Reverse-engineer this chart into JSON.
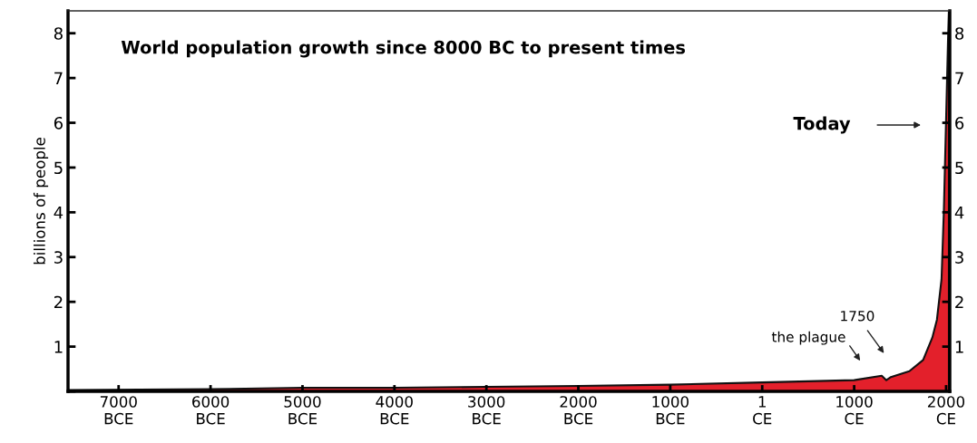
{
  "chart_data": {
    "type": "area",
    "title": "World population growth since 8000 BC to present times",
    "ylabel": "billions of people",
    "x": [
      -7550,
      -6000,
      -5000,
      -4000,
      -3000,
      -2000,
      -1000,
      1,
      1000,
      1300,
      1350,
      1400,
      1600,
      1750,
      1850,
      1900,
      1950,
      1975,
      2000,
      2020,
      2030
    ],
    "series": [
      {
        "color": "#e3202b",
        "values": [
          0.03,
          0.05,
          0.08,
          0.08,
          0.1,
          0.12,
          0.15,
          0.2,
          0.25,
          0.35,
          0.25,
          0.32,
          0.45,
          0.7,
          1.2,
          1.6,
          2.5,
          4.0,
          6.1,
          7.8,
          8.5
        ]
      }
    ],
    "xlim": [
      -7550,
      2040
    ],
    "xticks": [
      {
        "value": -7000,
        "label": "7000\nBCE"
      },
      {
        "value": -6000,
        "label": "6000\nBCE"
      },
      {
        "value": -5000,
        "label": "5000\nBCE"
      },
      {
        "value": -4000,
        "label": "4000\nBCE"
      },
      {
        "value": -3000,
        "label": "3000\nBCE"
      },
      {
        "value": -2000,
        "label": "2000\nBCE"
      },
      {
        "value": -1000,
        "label": "1000\nBCE"
      },
      {
        "value": 1,
        "label": "1\nCE"
      },
      {
        "value": 1000,
        "label": "1000\nCE"
      },
      {
        "value": 2000,
        "label": "2000\nCE"
      }
    ],
    "ylim": [
      0,
      8.5
    ],
    "yticks": [
      {
        "value": 0,
        "label": null
      },
      1,
      2,
      3,
      4,
      5,
      6,
      7,
      8
    ],
    "y2lim": [
      0,
      8.5
    ],
    "y2ticks": [
      1,
      2,
      3,
      4,
      5,
      6,
      7,
      8
    ],
    "annotations": [
      "Today",
      "1750",
      "the plague"
    ],
    "grid": false,
    "legend": false
  }
}
